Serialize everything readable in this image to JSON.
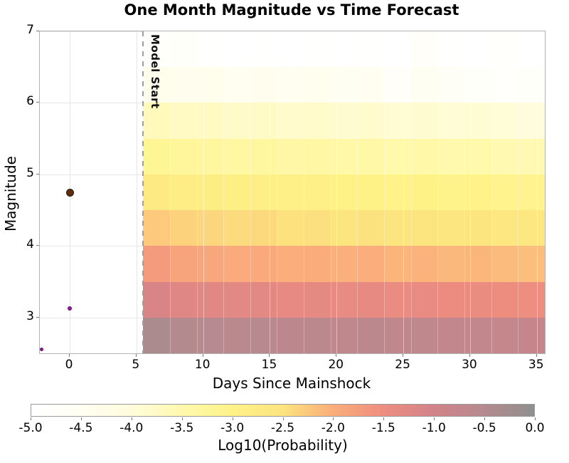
{
  "chart_data": {
    "type": "heatmap",
    "title": "One Month Magnitude vs Time Forecast",
    "xlabel": "Days Since Mainshock",
    "ylabel": "Magnitude",
    "xlim": [
      -2.24,
      35.6
    ],
    "ylim": [
      2.5,
      7
    ],
    "x_ticks": [
      0,
      5,
      10,
      15,
      20,
      25,
      30,
      35
    ],
    "y_ticks": [
      3,
      4,
      5,
      6,
      7
    ],
    "grid": true,
    "legend": "none",
    "model_start": {
      "x": 5.5,
      "label": "Model Start",
      "line_color": "#9e9e9e"
    },
    "heatmap": {
      "x_start_day": 5.5,
      "x_end_day": 35.5,
      "n_cols": 15,
      "col_width_days": 2,
      "mag_rows": [
        {
          "mag_min": 6.5,
          "mag_max": 7.0,
          "values": [
            -4.88,
            -4.8,
            -4.95,
            -5.0,
            -4.92,
            -5.0,
            -4.96,
            -5.0,
            -4.95,
            -5.0,
            -4.72,
            -4.94,
            -5.0,
            -4.9,
            -5.0
          ]
        },
        {
          "mag_min": 6.0,
          "mag_max": 6.5,
          "values": [
            -4.35,
            -4.42,
            -4.38,
            -4.45,
            -4.4,
            -4.48,
            -4.44,
            -4.5,
            -4.46,
            -4.72,
            -4.52,
            -4.66,
            -4.8,
            -4.85,
            -4.76
          ]
        },
        {
          "mag_min": 5.5,
          "mag_max": 6.0,
          "values": [
            -3.65,
            -3.74,
            -3.71,
            -3.79,
            -3.76,
            -3.83,
            -3.8,
            -3.87,
            -3.84,
            -3.9,
            -3.87,
            -3.93,
            -3.9,
            -3.96,
            -4.02
          ]
        },
        {
          "mag_min": 5.0,
          "mag_max": 5.5,
          "values": [
            -3.18,
            -3.27,
            -3.3,
            -3.34,
            -3.32,
            -3.39,
            -3.37,
            -3.43,
            -3.41,
            -3.47,
            -3.44,
            -3.5,
            -3.48,
            -3.53,
            -3.56
          ]
        },
        {
          "mag_min": 4.5,
          "mag_max": 5.0,
          "values": [
            -2.72,
            -2.81,
            -2.84,
            -2.89,
            -2.87,
            -2.94,
            -2.92,
            -2.97,
            -2.95,
            -3.01,
            -2.99,
            -3.04,
            -3.02,
            -3.07,
            -3.09
          ]
        },
        {
          "mag_min": 4.0,
          "mag_max": 4.5,
          "values": [
            -2.25,
            -2.34,
            -2.37,
            -2.42,
            -2.4,
            -2.47,
            -2.45,
            -2.5,
            -2.48,
            -2.54,
            -2.52,
            -2.57,
            -2.55,
            -2.6,
            -2.62
          ]
        },
        {
          "mag_min": 3.5,
          "mag_max": 4.0,
          "values": [
            -1.72,
            -1.86,
            -1.9,
            -1.95,
            -1.93,
            -2.0,
            -1.98,
            -2.03,
            -2.01,
            -2.07,
            -2.05,
            -2.1,
            -2.08,
            -2.13,
            -2.15
          ]
        },
        {
          "mag_min": 3.0,
          "mag_max": 3.5,
          "values": [
            -1.12,
            -1.22,
            -1.26,
            -1.31,
            -1.29,
            -1.36,
            -1.34,
            -1.39,
            -1.37,
            -1.43,
            -1.41,
            -1.46,
            -1.44,
            -1.49,
            -1.51
          ]
        },
        {
          "mag_min": 2.5,
          "mag_max": 3.0,
          "values": [
            -0.38,
            -0.48,
            -0.52,
            -0.57,
            -0.55,
            -0.62,
            -0.6,
            -0.65,
            -0.63,
            -0.69,
            -0.67,
            -0.72,
            -0.7,
            -0.75,
            -0.77
          ]
        }
      ]
    },
    "colorbar": {
      "label": "Log10(Probability)",
      "vmin": -5,
      "vmax": 0,
      "tick_labels": [
        "-5.0",
        "-4.5",
        "-4.0",
        "-3.5",
        "-3.0",
        "-2.5",
        "-2.0",
        "-1.5",
        "-1.0",
        "-0.5",
        "0.0"
      ],
      "stops": [
        {
          "value": -5.0,
          "color": "#ffffff"
        },
        {
          "value": -4.5,
          "color": "#fffef2"
        },
        {
          "value": -4.0,
          "color": "#fffcdc"
        },
        {
          "value": -3.5,
          "color": "#fff9ae"
        },
        {
          "value": -3.0,
          "color": "#fef287"
        },
        {
          "value": -2.5,
          "color": "#fce47e"
        },
        {
          "value": -2.0,
          "color": "#fbad7b"
        },
        {
          "value": -1.5,
          "color": "#ee8d80"
        },
        {
          "value": -1.0,
          "color": "#d28389"
        },
        {
          "value": -0.5,
          "color": "#b58a8e"
        },
        {
          "value": 0.0,
          "color": "#8f8f8f"
        }
      ]
    },
    "points": [
      {
        "name": "mainshock-point",
        "day": 0,
        "magnitude": 4.75,
        "color": "#5c2e0f",
        "edge": "#2e1705",
        "diameter": 11
      },
      {
        "name": "aftershock-point",
        "day": 0,
        "magnitude": 3.13,
        "color": "#9c17a4",
        "edge": "#5f0d66",
        "diameter": 6
      },
      {
        "name": "foreshock-point",
        "day": -2.13,
        "magnitude": 2.55,
        "color": "#9c17a4",
        "edge": "#5f0d66",
        "diameter": 5
      }
    ]
  }
}
